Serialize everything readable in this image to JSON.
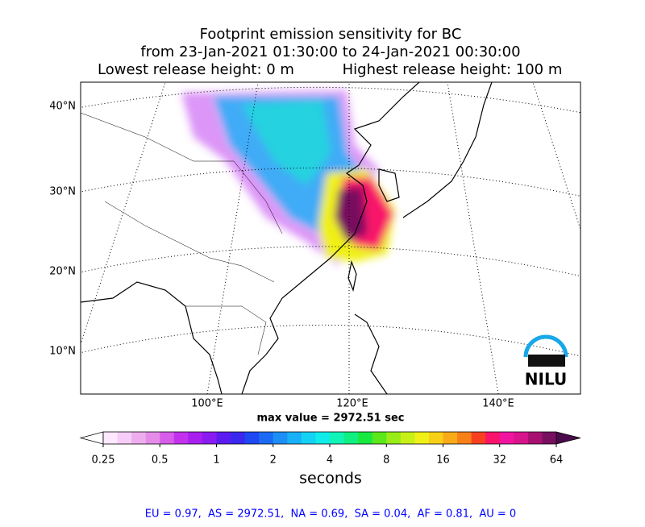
{
  "title": [
    "Footprint emission sensitivity for BC",
    "from 23-Jan-2021 01:30:00 to 24-Jan-2021 00:30:00"
  ],
  "release": {
    "lowest": "Lowest release height: 0 m",
    "highest": "Highest release height: 100 m"
  },
  "map": {
    "lat_labels": [
      "40°N",
      "30°N",
      "20°N",
      "10°N"
    ],
    "lon_labels": [
      "100°E",
      "120°E",
      "140°E"
    ]
  },
  "max_value": "max value = 2972.51 sec",
  "colorbar": {
    "label": "seconds",
    "lim": [
      0.25,
      64
    ],
    "ticks": [
      0.25,
      0.5,
      1,
      2,
      4,
      8,
      16,
      32,
      64
    ],
    "log": true,
    "under_color": "#ffffff",
    "over_color": "#4b0a4b",
    "colors": [
      "#fde8fd",
      "#f6cdf6",
      "#eeaeee",
      "#e48ce8",
      "#d65ce9",
      "#c232ee",
      "#a81ff0",
      "#8a1cf2",
      "#5a1cf0",
      "#3a28ee",
      "#1e48f2",
      "#1a6af4",
      "#1c8ef6",
      "#18b0f6",
      "#14d2f4",
      "#10ecea",
      "#10f4b8",
      "#10f080",
      "#18e840",
      "#5ae81a",
      "#98ec18",
      "#c8f018",
      "#f0f018",
      "#f8d018",
      "#f8aa18",
      "#f88018",
      "#f84020",
      "#f8146a",
      "#f014a0",
      "#d8148c",
      "#a81070",
      "#781060"
    ]
  },
  "logo": "NILU",
  "footer": "EU = 0.97,  AS = 2972.51,  NA = 0.69,  SA = 0.04,  AF = 0.81,  AU = 0"
}
